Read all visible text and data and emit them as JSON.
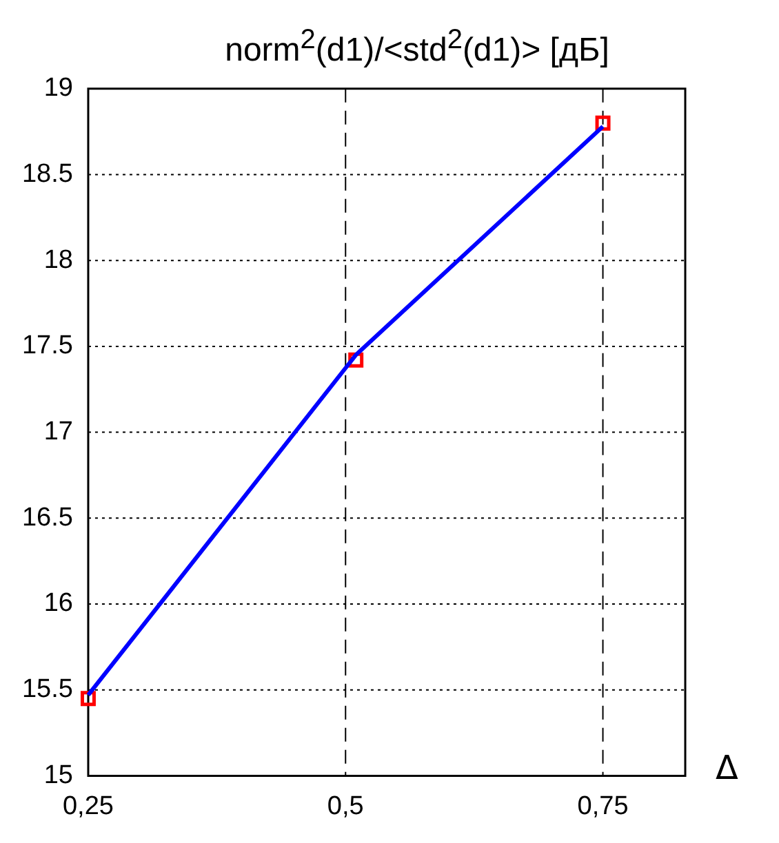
{
  "chart_data": {
    "type": "line",
    "title": "norm$^{2}$(d1)/<std$^{2}$(d1)> [дБ]",
    "xlabel": "Δ",
    "series": [
      {
        "color": "#0000ff",
        "x": [
          0.25,
          0.51,
          0.75
        ],
        "values": [
          15.47,
          17.45,
          18.78
        ],
        "marker": "none",
        "line_style": "solid"
      },
      {
        "type": "scatter",
        "color": "#ff0000",
        "x": [
          0.25,
          0.51,
          0.75
        ],
        "values": [
          15.45,
          17.42,
          18.8
        ],
        "marker": "square"
      }
    ],
    "xlim": [
      0.25,
      0.83
    ],
    "xticks": [
      {
        "value": 0.25,
        "label": "0,25"
      },
      {
        "value": 0.5,
        "label": "0,5"
      },
      {
        "value": 0.75,
        "label": "0,75"
      }
    ],
    "ylim": [
      15,
      19
    ],
    "yticks": [
      15,
      15.5,
      16,
      16.5,
      17,
      17.5,
      18,
      18.5,
      19
    ],
    "grid": true,
    "legend": false
  }
}
